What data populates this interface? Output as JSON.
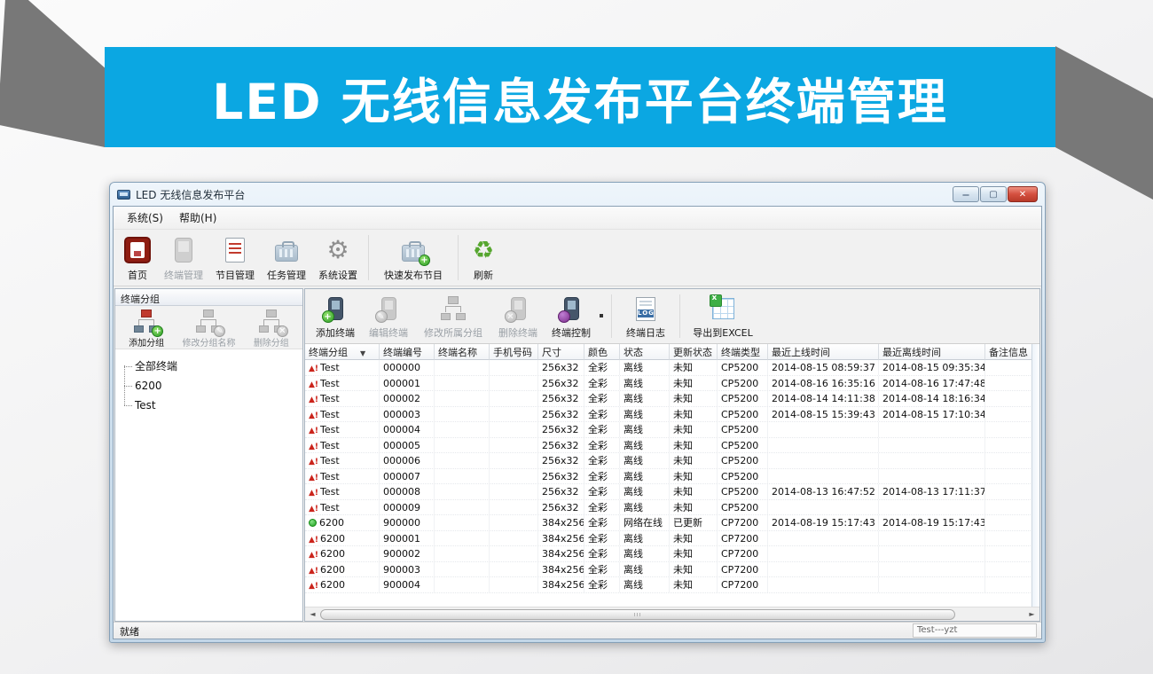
{
  "colors": {
    "banner_blue": "#0ba7e2",
    "ribbon_gray": "#787878",
    "alert_red": "#cb251c",
    "online_green": "#1f9e1f"
  },
  "banner": {
    "title": "LED 无线信息发布平台终端管理"
  },
  "window": {
    "title": "LED 无线信息发布平台",
    "controls": {
      "minimize": "minimize",
      "maximize": "maximize",
      "close": "close"
    },
    "menu": {
      "items": [
        {
          "label": "系统(S)"
        },
        {
          "label": "帮助(H)"
        }
      ]
    },
    "toolbar": {
      "items": [
        {
          "label": "首页",
          "icon": "home-icon",
          "disabled": false
        },
        {
          "label": "终端管理",
          "icon": "terminal-manage-icon",
          "disabled": true
        },
        {
          "label": "节目管理",
          "icon": "program-manage-icon",
          "disabled": false
        },
        {
          "label": "任务管理",
          "icon": "task-manage-icon",
          "disabled": false
        },
        {
          "label": "系统设置",
          "icon": "settings-gear-icon",
          "disabled": false
        },
        {
          "label": "快速发布节目",
          "icon": "quick-publish-icon",
          "disabled": false
        },
        {
          "label": "刷新",
          "icon": "refresh-icon",
          "disabled": false
        }
      ]
    },
    "group_panel": {
      "title": "终端分组",
      "buttons": [
        {
          "label": "添加分组",
          "icon": "add-group-icon",
          "disabled": false
        },
        {
          "label": "修改分组名称",
          "icon": "rename-group-icon",
          "disabled": true
        },
        {
          "label": "删除分组",
          "icon": "delete-group-icon",
          "disabled": true
        }
      ],
      "tree": [
        {
          "label": "全部终端"
        },
        {
          "label": "6200"
        },
        {
          "label": "Test"
        }
      ]
    },
    "terminal_toolbar": {
      "items": [
        {
          "label": "添加终端",
          "icon": "add-terminal-icon",
          "disabled": false
        },
        {
          "label": "编辑终端",
          "icon": "edit-terminal-icon",
          "disabled": true
        },
        {
          "label": "修改所属分组",
          "icon": "modify-group-icon",
          "disabled": true
        },
        {
          "label": "删除终端",
          "icon": "delete-terminal-icon",
          "disabled": true
        },
        {
          "label": "终端控制",
          "icon": "control-terminal-icon",
          "disabled": false
        },
        {
          "label": "终端日志",
          "icon": "terminal-log-icon",
          "disabled": false
        },
        {
          "label": "导出到EXCEL",
          "icon": "export-excel-icon",
          "disabled": false
        }
      ]
    },
    "table": {
      "columns": [
        "终端分组",
        "终端编号",
        "终端名称",
        "手机号码",
        "尺寸",
        "颜色",
        "状态",
        "更新状态",
        "终端类型",
        "最近上线时间",
        "最近离线时间",
        "备注信息"
      ],
      "rows": [
        {
          "status": "offline",
          "group": "Test",
          "id": "000000",
          "name": "",
          "phone": "",
          "size": "256x32",
          "color": "全彩",
          "state": "离线",
          "update": "未知",
          "type": "CP5200",
          "online_time": "2014-08-15 08:59:37",
          "offline_time": "2014-08-15 09:35:34",
          "remark": ""
        },
        {
          "status": "offline",
          "group": "Test",
          "id": "000001",
          "name": "",
          "phone": "",
          "size": "256x32",
          "color": "全彩",
          "state": "离线",
          "update": "未知",
          "type": "CP5200",
          "online_time": "2014-08-16 16:35:16",
          "offline_time": "2014-08-16 17:47:48",
          "remark": ""
        },
        {
          "status": "offline",
          "group": "Test",
          "id": "000002",
          "name": "",
          "phone": "",
          "size": "256x32",
          "color": "全彩",
          "state": "离线",
          "update": "未知",
          "type": "CP5200",
          "online_time": "2014-08-14 14:11:38",
          "offline_time": "2014-08-14 18:16:34",
          "remark": ""
        },
        {
          "status": "offline",
          "group": "Test",
          "id": "000003",
          "name": "",
          "phone": "",
          "size": "256x32",
          "color": "全彩",
          "state": "离线",
          "update": "未知",
          "type": "CP5200",
          "online_time": "2014-08-15 15:39:43",
          "offline_time": "2014-08-15 17:10:34",
          "remark": ""
        },
        {
          "status": "offline",
          "group": "Test",
          "id": "000004",
          "name": "",
          "phone": "",
          "size": "256x32",
          "color": "全彩",
          "state": "离线",
          "update": "未知",
          "type": "CP5200",
          "online_time": "",
          "offline_time": "",
          "remark": ""
        },
        {
          "status": "offline",
          "group": "Test",
          "id": "000005",
          "name": "",
          "phone": "",
          "size": "256x32",
          "color": "全彩",
          "state": "离线",
          "update": "未知",
          "type": "CP5200",
          "online_time": "",
          "offline_time": "",
          "remark": ""
        },
        {
          "status": "offline",
          "group": "Test",
          "id": "000006",
          "name": "",
          "phone": "",
          "size": "256x32",
          "color": "全彩",
          "state": "离线",
          "update": "未知",
          "type": "CP5200",
          "online_time": "",
          "offline_time": "",
          "remark": ""
        },
        {
          "status": "offline",
          "group": "Test",
          "id": "000007",
          "name": "",
          "phone": "",
          "size": "256x32",
          "color": "全彩",
          "state": "离线",
          "update": "未知",
          "type": "CP5200",
          "online_time": "",
          "offline_time": "",
          "remark": ""
        },
        {
          "status": "offline",
          "group": "Test",
          "id": "000008",
          "name": "",
          "phone": "",
          "size": "256x32",
          "color": "全彩",
          "state": "离线",
          "update": "未知",
          "type": "CP5200",
          "online_time": "2014-08-13 16:47:52",
          "offline_time": "2014-08-13 17:11:37",
          "remark": ""
        },
        {
          "status": "offline",
          "group": "Test",
          "id": "000009",
          "name": "",
          "phone": "",
          "size": "256x32",
          "color": "全彩",
          "state": "离线",
          "update": "未知",
          "type": "CP5200",
          "online_time": "",
          "offline_time": "",
          "remark": ""
        },
        {
          "status": "online",
          "group": "6200",
          "id": "900000",
          "name": "",
          "phone": "",
          "size": "384x256",
          "color": "全彩",
          "state": "网络在线",
          "update": "已更新",
          "type": "CP7200",
          "online_time": "2014-08-19 15:17:43",
          "offline_time": "2014-08-19 15:17:43",
          "remark": ""
        },
        {
          "status": "offline",
          "group": "6200",
          "id": "900001",
          "name": "",
          "phone": "",
          "size": "384x256",
          "color": "全彩",
          "state": "离线",
          "update": "未知",
          "type": "CP7200",
          "online_time": "",
          "offline_time": "",
          "remark": ""
        },
        {
          "status": "offline",
          "group": "6200",
          "id": "900002",
          "name": "",
          "phone": "",
          "size": "384x256",
          "color": "全彩",
          "state": "离线",
          "update": "未知",
          "type": "CP7200",
          "online_time": "",
          "offline_time": "",
          "remark": ""
        },
        {
          "status": "offline",
          "group": "6200",
          "id": "900003",
          "name": "",
          "phone": "",
          "size": "384x256",
          "color": "全彩",
          "state": "离线",
          "update": "未知",
          "type": "CP7200",
          "online_time": "",
          "offline_time": "",
          "remark": ""
        },
        {
          "status": "offline",
          "group": "6200",
          "id": "900004",
          "name": "",
          "phone": "",
          "size": "384x256",
          "color": "全彩",
          "state": "离线",
          "update": "未知",
          "type": "CP7200",
          "online_time": "",
          "offline_time": "",
          "remark": ""
        }
      ]
    },
    "status_bar": {
      "left": "就绪",
      "right": "Test---yzt"
    }
  }
}
